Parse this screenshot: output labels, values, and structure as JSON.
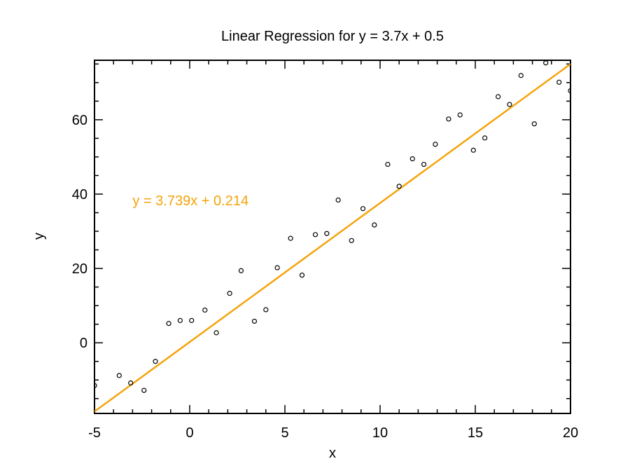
{
  "chart_data": {
    "type": "scatter",
    "title": "Linear Regression for y = 3.7x + 0.5",
    "xlabel": "x",
    "ylabel": "y",
    "xlim": [
      -5,
      20
    ],
    "ylim": [
      -19,
      76
    ],
    "xticks": [
      -5,
      0,
      5,
      10,
      15,
      20
    ],
    "yticks": [
      0,
      20,
      40,
      60
    ],
    "grid": false,
    "fit_color": "#f5a30a",
    "fit": {
      "slope": 3.739,
      "intercept": 0.214
    },
    "annotation": {
      "text": "y = 3.739x + 0.214",
      "x": -3.0,
      "y": 37
    },
    "points": [
      [
        -5.0,
        -11.5
      ],
      [
        -3.7,
        -8.8
      ],
      [
        -3.1,
        -10.8
      ],
      [
        -2.4,
        -12.8
      ],
      [
        -1.8,
        -5.0
      ],
      [
        -1.1,
        5.2
      ],
      [
        -0.5,
        6.0
      ],
      [
        0.1,
        6.0
      ],
      [
        0.8,
        8.8
      ],
      [
        1.4,
        2.7
      ],
      [
        2.1,
        13.3
      ],
      [
        2.7,
        19.4
      ],
      [
        3.4,
        5.8
      ],
      [
        4.0,
        8.9
      ],
      [
        4.6,
        20.2
      ],
      [
        5.3,
        28.1
      ],
      [
        5.9,
        18.2
      ],
      [
        6.6,
        29.1
      ],
      [
        7.2,
        29.4
      ],
      [
        7.8,
        38.4
      ],
      [
        8.5,
        27.5
      ],
      [
        9.1,
        36.1
      ],
      [
        9.7,
        31.7
      ],
      [
        10.4,
        48.0
      ],
      [
        11.0,
        42.1
      ],
      [
        11.7,
        49.5
      ],
      [
        12.3,
        48.0
      ],
      [
        12.9,
        53.4
      ],
      [
        13.6,
        60.2
      ],
      [
        14.2,
        61.3
      ],
      [
        14.9,
        51.8
      ],
      [
        15.5,
        55.1
      ],
      [
        16.2,
        66.2
      ],
      [
        16.8,
        64.1
      ],
      [
        17.4,
        71.9
      ],
      [
        18.1,
        58.9
      ],
      [
        18.7,
        75.3
      ],
      [
        19.4,
        70.1
      ],
      [
        20.0,
        67.8
      ]
    ]
  }
}
